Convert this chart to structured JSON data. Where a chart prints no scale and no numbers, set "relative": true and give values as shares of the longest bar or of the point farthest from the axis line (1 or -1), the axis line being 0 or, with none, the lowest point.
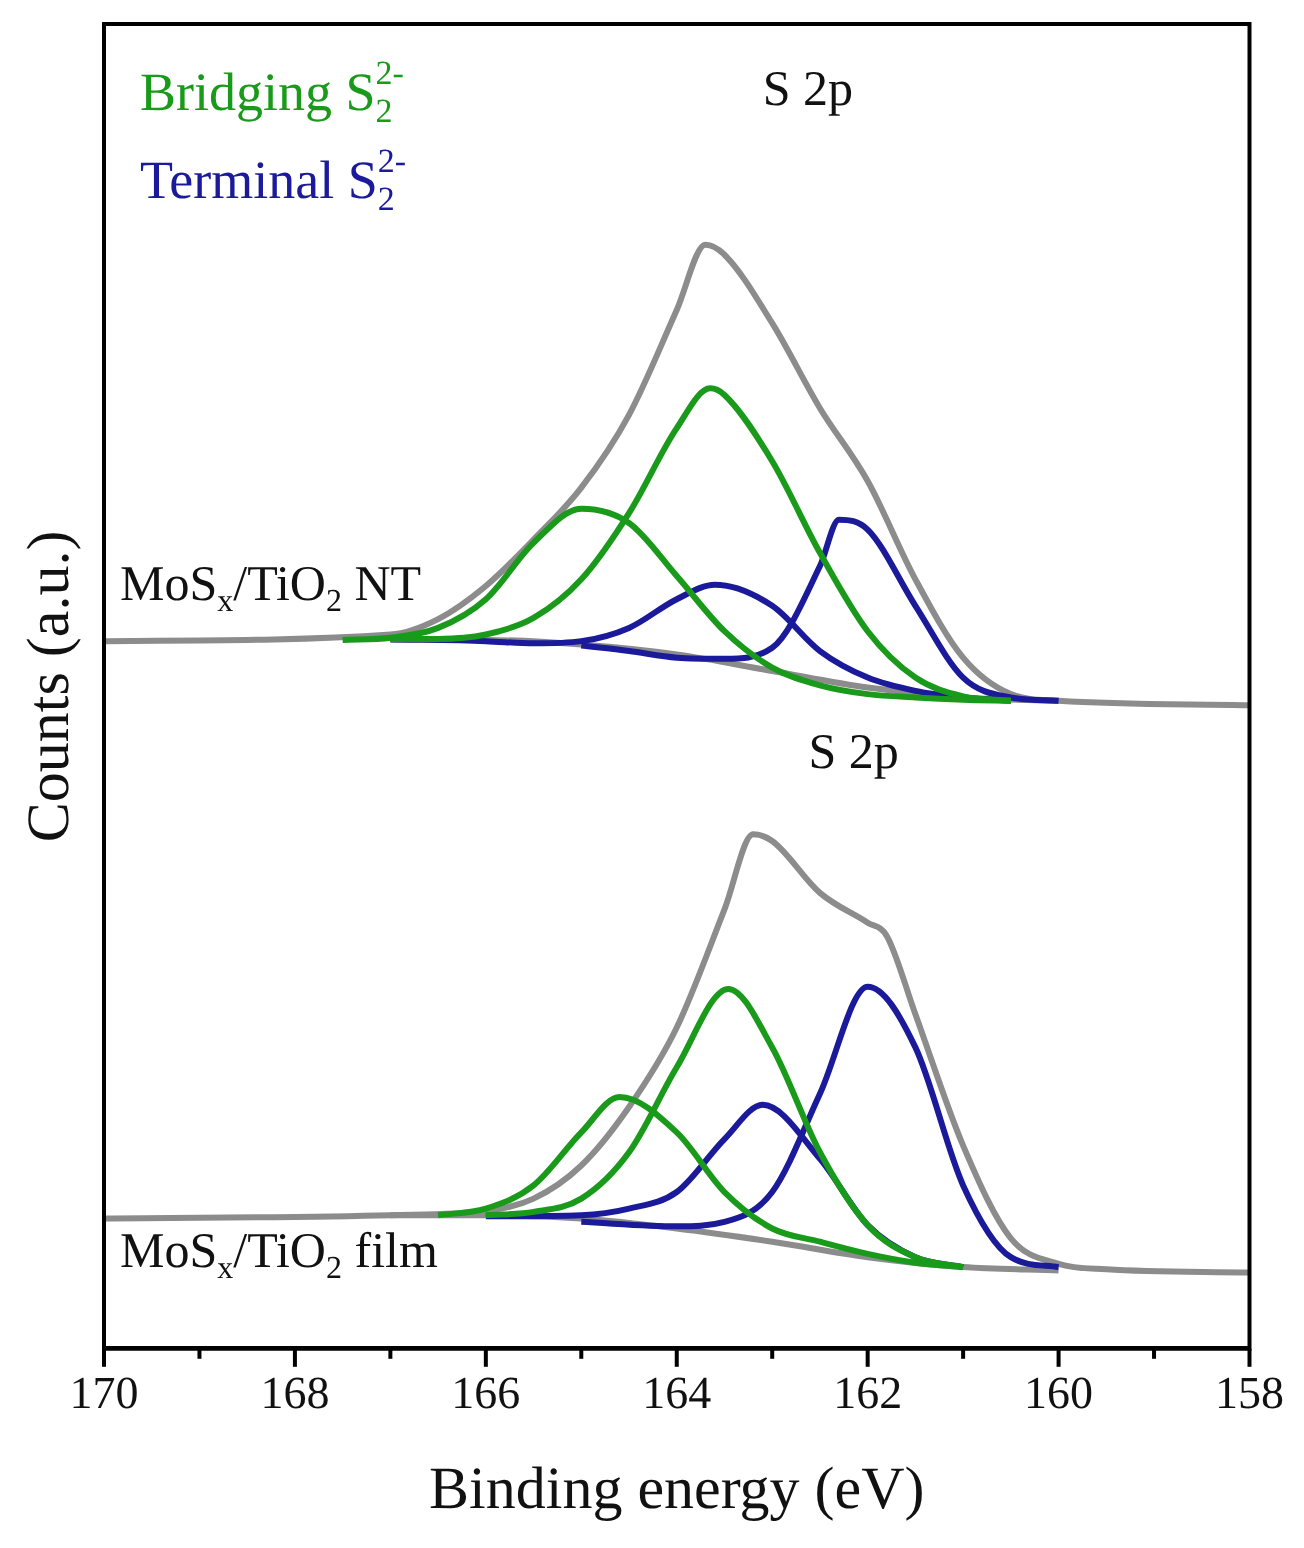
{
  "chart_data": {
    "type": "line",
    "xlabel": "Binding energy (eV)",
    "ylabel": "Counts (a.u.)",
    "relative": true,
    "xlim": [
      170,
      158
    ],
    "xticks": [
      170,
      {
        "value": 169,
        "label": null
      },
      168,
      {
        "value": 167,
        "label": null
      },
      166,
      {
        "value": 165,
        "label": null
      },
      164,
      {
        "value": 163,
        "label": null
      },
      162,
      {
        "value": 161,
        "label": null
      },
      160,
      {
        "value": 159,
        "label": null
      },
      158
    ],
    "tick_labels": "x",
    "grid": false,
    "marker": "none",
    "legend": "top left",
    "annotations": [
      "S 2p",
      "S 2p",
      "MoS$_{x}$/TiO$_{2}$ NT",
      "MoS$_{x}$/TiO$_{2}$ film"
    ],
    "series": [
      {
        "name": "Bridging S$_{2}$$^{2-}$",
        "color": "#1a9a1a",
        "x": [
          167.5,
          167,
          166.5,
          166,
          165.5,
          165,
          164.5,
          164,
          163.5,
          163,
          162.5,
          162,
          161.5,
          161,
          160.5
        ],
        "values": [
          0.642,
          0.644,
          0.653,
          0.679,
          0.73,
          0.761,
          0.748,
          0.7,
          0.65,
          0.617,
          0.601,
          0.593,
          0.59,
          0.588,
          0.587
        ]
      },
      {
        "color": "#1a9a1a",
        "x": [
          167,
          166.5,
          166,
          165.5,
          165,
          164.5,
          164,
          163.65,
          163.5,
          163,
          162.5,
          162,
          161.5,
          161,
          160.5
        ],
        "values": [
          0.643,
          0.643,
          0.647,
          0.662,
          0.697,
          0.757,
          0.834,
          0.87,
          0.864,
          0.804,
          0.721,
          0.65,
          0.608,
          0.591,
          0.587
        ]
      },
      {
        "name": "Terminal S$_{2}$$^{2-}$",
        "color": "#1a1a9a",
        "x": [
          167,
          166,
          165.5,
          165,
          164.5,
          164,
          163.6,
          163,
          162.5,
          162,
          161.5,
          161,
          160.5
        ],
        "values": [
          0.643,
          0.641,
          0.639,
          0.641,
          0.653,
          0.679,
          0.692,
          0.673,
          0.632,
          0.608,
          0.596,
          0.59,
          0.587
        ]
      },
      {
        "color": "#1a1a9a",
        "x": [
          165,
          164.5,
          164,
          163.5,
          163,
          162.5,
          162.3,
          162,
          161.5,
          161,
          160.5,
          160
        ],
        "values": [
          0.637,
          0.632,
          0.626,
          0.625,
          0.635,
          0.709,
          0.751,
          0.742,
          0.673,
          0.608,
          0.59,
          0.587
        ]
      },
      {
        "color": "#8c8c8c",
        "x": [
          167,
          166,
          165,
          164,
          163,
          162,
          161,
          160
        ],
        "values": [
          0.642,
          0.642,
          0.638,
          0.629,
          0.614,
          0.599,
          0.59,
          0.587
        ]
      },
      {
        "color": "#8c8c8c",
        "x": [
          170,
          167,
          166.5,
          166,
          165.5,
          165,
          164.5,
          164,
          163.7,
          163.5,
          163,
          162.5,
          162,
          161.5,
          161,
          160.5,
          160,
          158
        ],
        "values": [
          0.641,
          0.647,
          0.661,
          0.691,
          0.733,
          0.78,
          0.846,
          0.941,
          1.0,
          0.991,
          0.929,
          0.852,
          0.786,
          0.697,
          0.626,
          0.593,
          0.587,
          0.583
        ]
      },
      {
        "color": "#1a9a1a",
        "x": [
          166.5,
          166,
          165.5,
          165,
          164.6,
          164,
          163.5,
          163,
          162.5,
          162,
          161.5,
          161
        ],
        "values": [
          0.121,
          0.127,
          0.148,
          0.196,
          0.228,
          0.196,
          0.142,
          0.109,
          0.097,
          0.086,
          0.078,
          0.074
        ]
      },
      {
        "color": "#1a9a1a",
        "x": [
          166,
          165.5,
          165,
          164.5,
          164,
          163.46,
          163,
          162.5,
          162,
          161.5,
          161
        ],
        "values": [
          0.121,
          0.124,
          0.136,
          0.178,
          0.255,
          0.326,
          0.273,
          0.178,
          0.112,
          0.083,
          0.074
        ]
      },
      {
        "color": "#1a1a9a",
        "x": [
          166,
          165,
          164.5,
          164,
          163.5,
          163.1,
          162.5,
          162,
          161.5,
          161
        ],
        "values": [
          0.12,
          0.121,
          0.127,
          0.142,
          0.19,
          0.221,
          0.172,
          0.112,
          0.083,
          0.074
        ]
      },
      {
        "color": "#1a1a9a",
        "x": [
          165,
          164,
          163.5,
          163,
          162.5,
          162,
          161.5,
          161,
          160.5,
          160
        ],
        "values": [
          0.115,
          0.111,
          0.115,
          0.142,
          0.231,
          0.328,
          0.273,
          0.148,
          0.083,
          0.074
        ]
      },
      {
        "color": "#8c8c8c",
        "x": [
          167,
          166,
          165,
          164,
          163,
          162,
          161,
          160
        ],
        "values": [
          0.121,
          0.121,
          0.118,
          0.109,
          0.097,
          0.083,
          0.074,
          0.071
        ]
      },
      {
        "color": "#8c8c8c",
        "x": [
          170,
          167,
          166,
          165.5,
          165,
          164.5,
          164,
          163.5,
          163.2,
          163,
          162.5,
          162,
          161.8,
          161.5,
          161,
          160.5,
          160,
          159.5,
          158
        ],
        "values": [
          0.118,
          0.121,
          0.125,
          0.136,
          0.166,
          0.219,
          0.291,
          0.398,
          0.466,
          0.46,
          0.413,
          0.386,
          0.374,
          0.303,
          0.184,
          0.1,
          0.077,
          0.072,
          0.069
        ]
      }
    ]
  }
}
